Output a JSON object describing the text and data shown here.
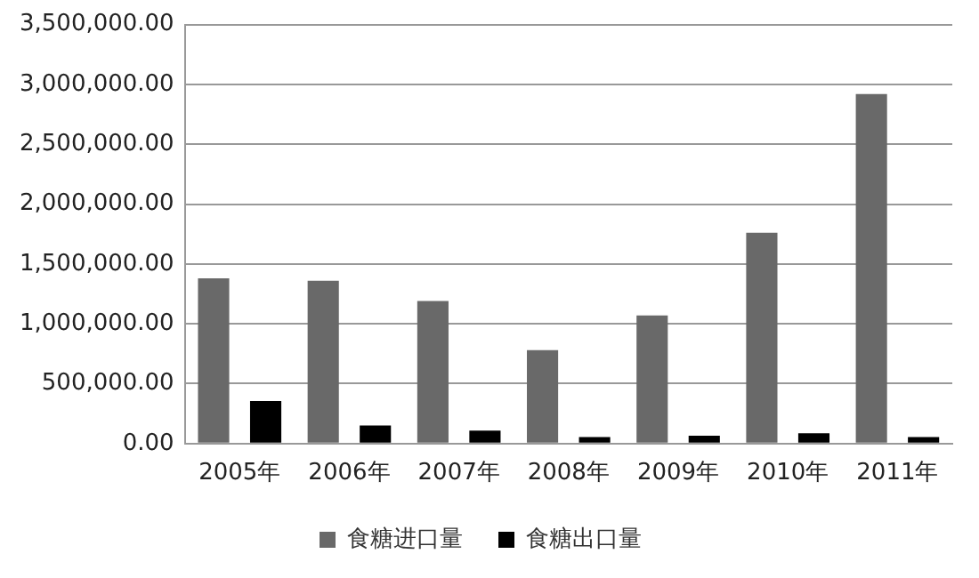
{
  "chart_data": {
    "type": "bar",
    "categories": [
      "2005年",
      "2006年",
      "2007年",
      "2008年",
      "2009年",
      "2010年",
      "2011年"
    ],
    "series": [
      {
        "name": "食糖进口量",
        "color": "#696969",
        "values": [
          1380000,
          1360000,
          1190000,
          780000,
          1070000,
          1760000,
          2920000
        ]
      },
      {
        "name": "食糖出口量",
        "color": "#000000",
        "values": [
          355000,
          150000,
          108000,
          54000,
          65000,
          86000,
          54000
        ]
      }
    ],
    "ylim": [
      0,
      3500000
    ],
    "yticks": [
      {
        "value": 0,
        "label": "0.00"
      },
      {
        "value": 500000,
        "label": "500,000.00"
      },
      {
        "value": 1000000,
        "label": "1,000,000.00"
      },
      {
        "value": 1500000,
        "label": "1,500,000.00"
      },
      {
        "value": 2000000,
        "label": "2,000,000.00"
      },
      {
        "value": 2500000,
        "label": "2,500,000.00"
      },
      {
        "value": 3000000,
        "label": "3,000,000.00"
      },
      {
        "value": 3500000,
        "label": "3,500,000.00"
      }
    ],
    "grid": "y",
    "legend": "bottom"
  }
}
